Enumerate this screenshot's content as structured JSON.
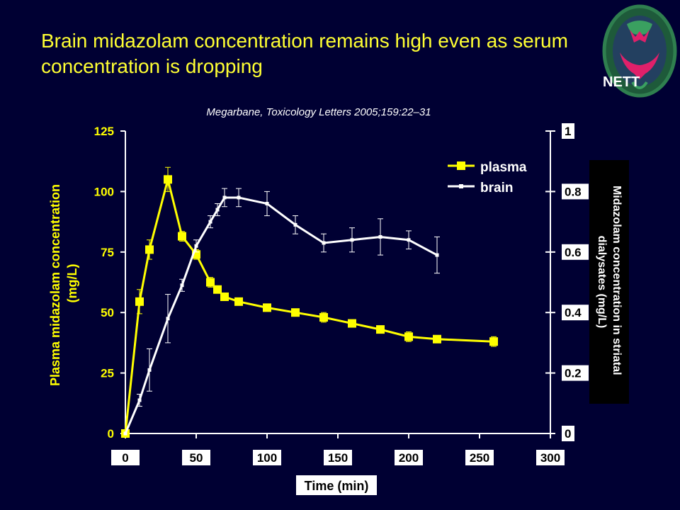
{
  "slide": {
    "title": "Brain midazolam concentration remains high even as serum concentration is dropping",
    "citation": "Megarbane, Toxicology Letters 2005;159:22–31",
    "logo_text": "NETT"
  },
  "colors": {
    "background": "#000033",
    "title": "#ffff33",
    "plasma": "#ffff00",
    "brain": "#ffffff",
    "axis": "#ffffff",
    "label_box": "#000000"
  },
  "chart_data": {
    "type": "line",
    "xlabel": "Time (min)",
    "ylabel": "Plasma midazolam concentration (mg/L)",
    "y2label": "Midazolam concentration in striatal dialysates (mg/L)",
    "xlim": [
      0,
      300
    ],
    "ylim": [
      0,
      125
    ],
    "y2lim": [
      0,
      1
    ],
    "x_ticks": [
      "0",
      "50",
      "100",
      "150",
      "200",
      "250",
      "300"
    ],
    "y_ticks": [
      "0",
      "25",
      "50",
      "75",
      "100",
      "125"
    ],
    "y2_ticks": [
      "0",
      "0.2",
      "0.4",
      "0.6",
      "0.8",
      "1"
    ],
    "grid": false,
    "legend_position": "top-right",
    "series": [
      {
        "name": "plasma",
        "axis": "left",
        "marker": "square-large",
        "x": [
          0,
          10,
          17,
          30,
          40,
          50,
          60,
          65,
          70,
          80,
          100,
          120,
          140,
          160,
          180,
          200,
          220,
          260
        ],
        "y": [
          0,
          54.5,
          76,
          105,
          81.5,
          74,
          62.5,
          59.5,
          56.5,
          54.5,
          52,
          50,
          48,
          45.5,
          43,
          40,
          39,
          38
        ],
        "error": [
          0,
          5,
          4,
          5,
          2,
          2,
          2,
          1,
          1,
          1,
          1,
          1,
          2,
          1,
          1,
          2,
          1,
          2
        ]
      },
      {
        "name": "brain",
        "axis": "right",
        "marker": "square-small",
        "x": [
          0,
          10,
          17,
          30,
          40,
          50,
          60,
          65,
          70,
          80,
          100,
          120,
          140,
          160,
          180,
          200,
          220
        ],
        "y": [
          0,
          0.11,
          0.21,
          0.38,
          0.49,
          0.62,
          0.7,
          0.74,
          0.78,
          0.78,
          0.76,
          0.69,
          0.63,
          0.64,
          0.65,
          0.64,
          0.59
        ],
        "error": [
          0,
          0.02,
          0.07,
          0.08,
          0.02,
          0.02,
          0.02,
          0.02,
          0.03,
          0.03,
          0.04,
          0.03,
          0.03,
          0.04,
          0.06,
          0.03,
          0.06
        ]
      }
    ]
  }
}
